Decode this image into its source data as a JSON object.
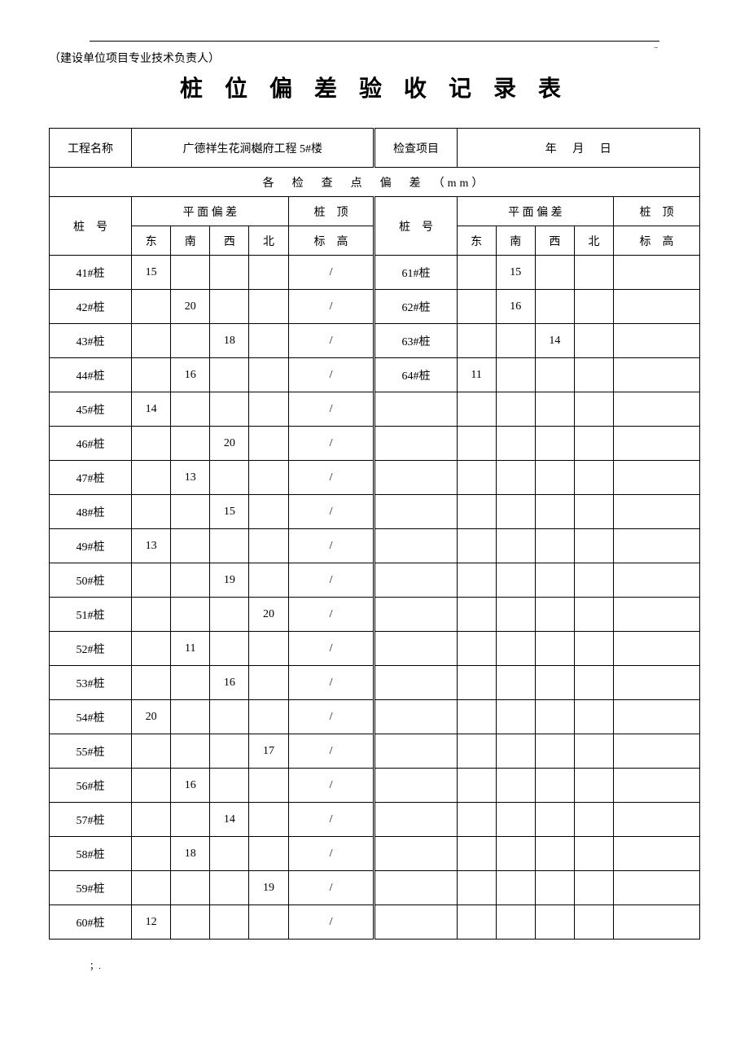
{
  "header_note": "（建设单位项目专业技术负责人）",
  "title": "桩 位 偏 差 验 收 记 录 表",
  "labels": {
    "project_name": "工程名称",
    "project_value": "广德祥生花涧樾府工程 5#楼",
    "check_item": "检查项目",
    "date": "年 月 日",
    "section_header": "各　检　查　点　偏　差　（mm）",
    "pile_no": "桩　号",
    "plane_dev": "平 面 偏 差",
    "pile_top": "桩　顶",
    "elevation": "标　高",
    "east": "东",
    "south": "南",
    "west": "西",
    "north": "北"
  },
  "left_rows": [
    {
      "pile": "41#桩",
      "e": "15",
      "s": "",
      "w": "",
      "n": "",
      "elev": "/"
    },
    {
      "pile": "42#桩",
      "e": "",
      "s": "20",
      "w": "",
      "n": "",
      "elev": "/"
    },
    {
      "pile": "43#桩",
      "e": "",
      "s": "",
      "w": "18",
      "n": "",
      "elev": "/"
    },
    {
      "pile": "44#桩",
      "e": "",
      "s": "16",
      "w": "",
      "n": "",
      "elev": "/"
    },
    {
      "pile": "45#桩",
      "e": "14",
      "s": "",
      "w": "",
      "n": "",
      "elev": "/"
    },
    {
      "pile": "46#桩",
      "e": "",
      "s": "",
      "w": "20",
      "n": "",
      "elev": "/"
    },
    {
      "pile": "47#桩",
      "e": "",
      "s": "13",
      "w": "",
      "n": "",
      "elev": "/"
    },
    {
      "pile": "48#桩",
      "e": "",
      "s": "",
      "w": "15",
      "n": "",
      "elev": "/"
    },
    {
      "pile": "49#桩",
      "e": "13",
      "s": "",
      "w": "",
      "n": "",
      "elev": "/"
    },
    {
      "pile": "50#桩",
      "e": "",
      "s": "",
      "w": "19",
      "n": "",
      "elev": "/"
    },
    {
      "pile": "51#桩",
      "e": "",
      "s": "",
      "w": "",
      "n": "20",
      "elev": "/"
    },
    {
      "pile": "52#桩",
      "e": "",
      "s": "11",
      "w": "",
      "n": "",
      "elev": "/"
    },
    {
      "pile": "53#桩",
      "e": "",
      "s": "",
      "w": "16",
      "n": "",
      "elev": "/"
    },
    {
      "pile": "54#桩",
      "e": "20",
      "s": "",
      "w": "",
      "n": "",
      "elev": "/"
    },
    {
      "pile": "55#桩",
      "e": "",
      "s": "",
      "w": "",
      "n": "17",
      "elev": "/"
    },
    {
      "pile": "56#桩",
      "e": "",
      "s": "16",
      "w": "",
      "n": "",
      "elev": "/"
    },
    {
      "pile": "57#桩",
      "e": "",
      "s": "",
      "w": "14",
      "n": "",
      "elev": "/"
    },
    {
      "pile": "58#桩",
      "e": "",
      "s": "18",
      "w": "",
      "n": "",
      "elev": "/"
    },
    {
      "pile": "59#桩",
      "e": "",
      "s": "",
      "w": "",
      "n": "19",
      "elev": "/"
    },
    {
      "pile": "60#桩",
      "e": "12",
      "s": "",
      "w": "",
      "n": "",
      "elev": "/"
    }
  ],
  "right_rows": [
    {
      "pile": "61#桩",
      "e": "",
      "s": "15",
      "w": "",
      "n": "",
      "elev": ""
    },
    {
      "pile": "62#桩",
      "e": "",
      "s": "16",
      "w": "",
      "n": "",
      "elev": ""
    },
    {
      "pile": "63#桩",
      "e": "",
      "s": "",
      "w": "14",
      "n": "",
      "elev": ""
    },
    {
      "pile": "64#桩",
      "e": "11",
      "s": "",
      "w": "",
      "n": "",
      "elev": ""
    },
    {
      "pile": "",
      "e": "",
      "s": "",
      "w": "",
      "n": "",
      "elev": ""
    },
    {
      "pile": "",
      "e": "",
      "s": "",
      "w": "",
      "n": "",
      "elev": ""
    },
    {
      "pile": "",
      "e": "",
      "s": "",
      "w": "",
      "n": "",
      "elev": ""
    },
    {
      "pile": "",
      "e": "",
      "s": "",
      "w": "",
      "n": "",
      "elev": ""
    },
    {
      "pile": "",
      "e": "",
      "s": "",
      "w": "",
      "n": "",
      "elev": ""
    },
    {
      "pile": "",
      "e": "",
      "s": "",
      "w": "",
      "n": "",
      "elev": ""
    },
    {
      "pile": "",
      "e": "",
      "s": "",
      "w": "",
      "n": "",
      "elev": ""
    },
    {
      "pile": "",
      "e": "",
      "s": "",
      "w": "",
      "n": "",
      "elev": ""
    },
    {
      "pile": "",
      "e": "",
      "s": "",
      "w": "",
      "n": "",
      "elev": ""
    },
    {
      "pile": "",
      "e": "",
      "s": "",
      "w": "",
      "n": "",
      "elev": ""
    },
    {
      "pile": "",
      "e": "",
      "s": "",
      "w": "",
      "n": "",
      "elev": ""
    },
    {
      "pile": "",
      "e": "",
      "s": "",
      "w": "",
      "n": "",
      "elev": ""
    },
    {
      "pile": "",
      "e": "",
      "s": "",
      "w": "",
      "n": "",
      "elev": ""
    },
    {
      "pile": "",
      "e": "",
      "s": "",
      "w": "",
      "n": "",
      "elev": ""
    },
    {
      "pile": "",
      "e": "",
      "s": "",
      "w": "",
      "n": "",
      "elev": ""
    },
    {
      "pile": "",
      "e": "",
      "s": "",
      "w": "",
      "n": "",
      "elev": ""
    }
  ],
  "footer": "；."
}
